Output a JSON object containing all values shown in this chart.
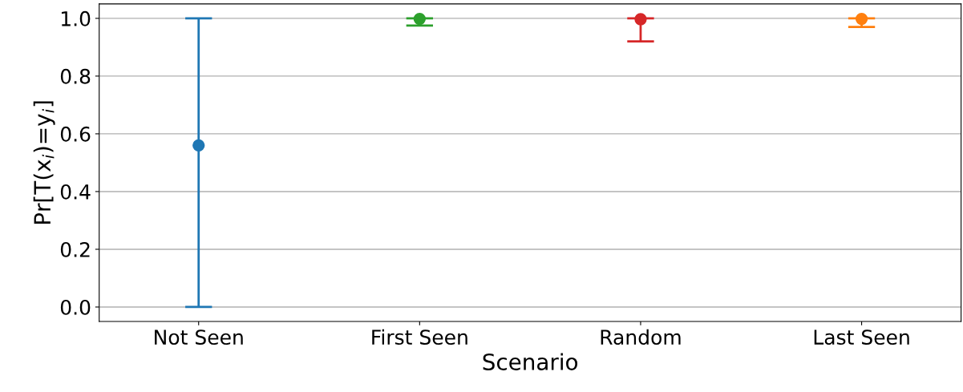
{
  "chart_data": {
    "type": "scatter",
    "xlabel": "Scenario",
    "ylabel": "Pr[T(x$_{i}$)=y$_{i}$]",
    "categories": [
      "Not Seen",
      "First Seen",
      "Random",
      "Last Seen"
    ],
    "values": [
      0.56,
      0.998,
      0.997,
      0.998
    ],
    "errors": [
      [
        0.0,
        1.0
      ],
      [
        0.975,
        1.0
      ],
      [
        0.92,
        1.0
      ],
      [
        0.97,
        1.0
      ]
    ],
    "colors": [
      "#1f77b4",
      "#2ca02c",
      "#d62728",
      "#ff7f0e"
    ],
    "ylim": [
      -0.05,
      1.05
    ],
    "yticks": [
      {
        "value": 0.0,
        "label": "0.0"
      },
      {
        "value": 0.2,
        "label": "0.2"
      },
      {
        "value": 0.4,
        "label": "0.4"
      },
      {
        "value": 0.6,
        "label": "0.6"
      },
      {
        "value": 0.8,
        "label": "0.8"
      },
      {
        "value": 1.0,
        "label": "1.0"
      }
    ],
    "grid": "y",
    "marker": "circle"
  }
}
